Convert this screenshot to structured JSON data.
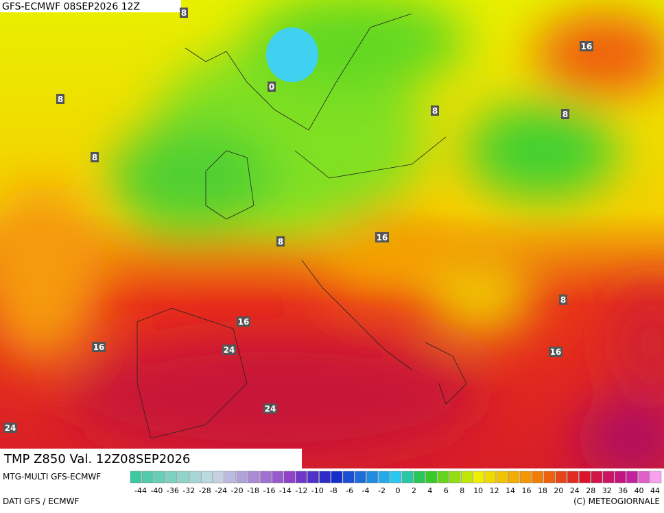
{
  "header": {
    "title": "GFS-ECMWF 08SEP2026 12Z"
  },
  "map": {
    "labels": [
      "8",
      "8",
      "8",
      "8",
      "8",
      "8",
      "8",
      "16",
      "16",
      "16",
      "16",
      "16",
      "24",
      "24",
      "24",
      "0"
    ]
  },
  "footer": {
    "caption": "TMP  Z850  Val. 12Z08SEP2026",
    "model": "MTG-MULTI GFS-ECMWF",
    "source": "DATI GFS / ECMWF",
    "credit": "(C) METEOGIORNALE"
  },
  "legend": {
    "labels": [
      -44,
      -40,
      -36,
      -32,
      -28,
      -24,
      -20,
      -18,
      -16,
      -14,
      -12,
      -10,
      -8,
      -6,
      -4,
      -2,
      0,
      2,
      4,
      6,
      8,
      10,
      12,
      14,
      16,
      18,
      20,
      24,
      28,
      32,
      36,
      40,
      44
    ]
  }
}
